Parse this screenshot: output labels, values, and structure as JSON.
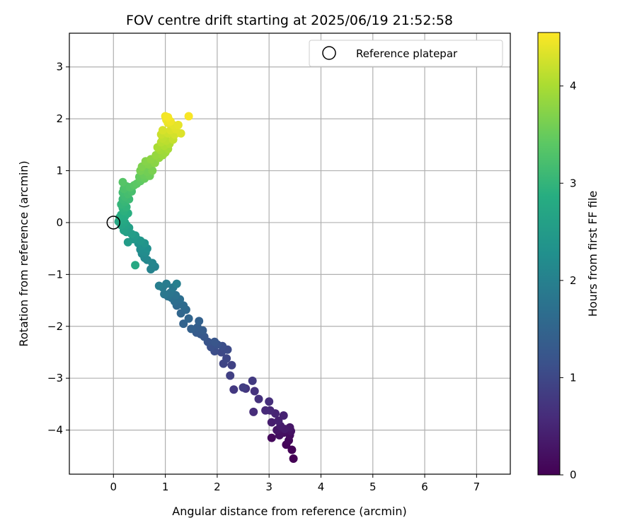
{
  "chart_data": {
    "type": "scatter",
    "title": "FOV centre drift starting at 2025/06/19 21:52:58",
    "xlabel": "Angular distance from reference (arcmin)",
    "ylabel": "Rotation from reference (arcmin)",
    "xlim": [
      -0.85,
      7.65
    ],
    "ylim": [
      -4.85,
      3.65
    ],
    "xticks": [
      0,
      1,
      2,
      3,
      4,
      5,
      6,
      7
    ],
    "yticks": [
      -4,
      -3,
      -2,
      -1,
      0,
      1,
      2,
      3
    ],
    "grid": true,
    "legend": {
      "position": "top-right",
      "entries": [
        "Reference platepar"
      ]
    },
    "reference_point": {
      "x": 0,
      "y": 0,
      "marker": "open-circle"
    },
    "colorbar": {
      "label": "Hours from first FF file",
      "colormap": "viridis",
      "range": [
        0,
        4.55
      ],
      "ticks": [
        0,
        1,
        2,
        3,
        4
      ]
    },
    "points": [
      [
        3.47,
        -4.55,
        0.0
      ],
      [
        3.44,
        -4.38,
        0.03
      ],
      [
        3.33,
        -4.28,
        0.06
      ],
      [
        3.38,
        -4.2,
        0.09
      ],
      [
        3.05,
        -4.15,
        0.12
      ],
      [
        3.4,
        -4.1,
        0.15
      ],
      [
        3.28,
        -4.05,
        0.18
      ],
      [
        3.2,
        -4.1,
        0.21
      ],
      [
        3.42,
        -4.02,
        0.24
      ],
      [
        3.15,
        -4.0,
        0.27
      ],
      [
        3.4,
        -3.95,
        0.3
      ],
      [
        3.3,
        -3.98,
        0.33
      ],
      [
        3.22,
        -3.92,
        0.36
      ],
      [
        3.05,
        -3.85,
        0.4
      ],
      [
        3.18,
        -3.82,
        0.43
      ],
      [
        3.28,
        -3.72,
        0.46
      ],
      [
        3.12,
        -3.68,
        0.5
      ],
      [
        3.02,
        -3.62,
        0.53
      ],
      [
        2.93,
        -3.62,
        0.56
      ],
      [
        2.7,
        -3.65,
        0.6
      ],
      [
        3.0,
        -3.45,
        0.63
      ],
      [
        2.8,
        -3.4,
        0.66
      ],
      [
        2.72,
        -3.25,
        0.7
      ],
      [
        2.55,
        -3.2,
        0.73
      ],
      [
        2.32,
        -3.22,
        0.77
      ],
      [
        2.68,
        -3.05,
        0.8
      ],
      [
        2.5,
        -3.18,
        0.84
      ],
      [
        2.25,
        -2.95,
        0.88
      ],
      [
        2.28,
        -2.75,
        0.92
      ],
      [
        2.12,
        -2.72,
        0.95
      ],
      [
        2.18,
        -2.62,
        0.98
      ],
      [
        2.08,
        -2.5,
        1.02
      ],
      [
        2.2,
        -2.45,
        1.05
      ],
      [
        1.95,
        -2.48,
        1.08
      ],
      [
        2.1,
        -2.38,
        1.11
      ],
      [
        1.88,
        -2.4,
        1.14
      ],
      [
        2.0,
        -2.35,
        1.17
      ],
      [
        1.82,
        -2.3,
        1.2
      ],
      [
        1.95,
        -2.3,
        1.23
      ],
      [
        1.75,
        -2.2,
        1.26
      ],
      [
        1.68,
        -2.15,
        1.29
      ],
      [
        1.6,
        -2.12,
        1.32
      ],
      [
        1.72,
        -2.08,
        1.35
      ],
      [
        1.62,
        -2.02,
        1.38
      ],
      [
        1.5,
        -2.05,
        1.41
      ],
      [
        1.65,
        -1.9,
        1.44
      ],
      [
        1.35,
        -1.95,
        1.47
      ],
      [
        1.45,
        -1.85,
        1.5
      ],
      [
        1.3,
        -1.75,
        1.53
      ],
      [
        1.4,
        -1.68,
        1.56
      ],
      [
        1.22,
        -1.6,
        1.59
      ],
      [
        1.35,
        -1.6,
        1.62
      ],
      [
        1.18,
        -1.52,
        1.65
      ],
      [
        1.28,
        -1.48,
        1.68
      ],
      [
        1.12,
        -1.45,
        1.71
      ],
      [
        1.2,
        -1.4,
        1.74
      ],
      [
        1.05,
        -1.42,
        1.77
      ],
      [
        1.1,
        -1.35,
        1.8
      ],
      [
        0.98,
        -1.38,
        1.83
      ],
      [
        1.15,
        -1.25,
        1.86
      ],
      [
        0.95,
        -1.25,
        1.89
      ],
      [
        1.02,
        -1.18,
        1.92
      ],
      [
        0.88,
        -1.22,
        1.95
      ],
      [
        1.22,
        -1.18,
        1.98
      ],
      [
        0.8,
        -0.85,
        2.02
      ],
      [
        0.72,
        -0.9,
        2.05
      ],
      [
        0.75,
        -0.78,
        2.08
      ],
      [
        0.65,
        -0.72,
        2.11
      ],
      [
        0.6,
        -0.68,
        2.14
      ],
      [
        0.55,
        -0.6,
        2.17
      ],
      [
        0.62,
        -0.58,
        2.2
      ],
      [
        0.52,
        -0.52,
        2.23
      ],
      [
        0.65,
        -0.5,
        2.26
      ],
      [
        0.55,
        -0.45,
        2.29
      ],
      [
        0.48,
        -0.4,
        2.32
      ],
      [
        0.6,
        -0.4,
        2.35
      ],
      [
        0.45,
        -0.32,
        2.38
      ],
      [
        0.52,
        -0.35,
        2.41
      ],
      [
        0.38,
        -0.32,
        2.44
      ],
      [
        0.42,
        -0.25,
        2.47
      ],
      [
        0.28,
        -0.38,
        2.5
      ],
      [
        0.35,
        -0.22,
        2.53
      ],
      [
        0.25,
        -0.18,
        2.56
      ],
      [
        0.3,
        -0.1,
        2.59
      ],
      [
        0.2,
        -0.15,
        2.62
      ],
      [
        0.25,
        -0.05,
        2.65
      ],
      [
        0.15,
        -0.05,
        2.68
      ],
      [
        0.22,
        0.0,
        2.71
      ],
      [
        0.1,
        0.02,
        2.74
      ],
      [
        0.18,
        0.05,
        2.77
      ],
      [
        0.12,
        0.1,
        2.8
      ],
      [
        0.22,
        0.12,
        2.83
      ],
      [
        0.15,
        0.15,
        2.86
      ],
      [
        0.28,
        0.18,
        2.89
      ],
      [
        0.2,
        0.22,
        2.92
      ],
      [
        0.42,
        -0.82,
        2.76
      ],
      [
        0.18,
        0.28,
        2.95
      ],
      [
        0.25,
        0.3,
        2.98
      ],
      [
        0.15,
        0.35,
        3.01
      ],
      [
        0.22,
        0.4,
        3.04
      ],
      [
        0.18,
        0.45,
        3.07
      ],
      [
        0.3,
        0.45,
        3.1
      ],
      [
        0.22,
        0.5,
        3.13
      ],
      [
        0.18,
        0.58,
        3.16
      ],
      [
        0.28,
        0.55,
        3.19
      ],
      [
        0.35,
        0.6,
        3.22
      ],
      [
        0.2,
        0.65,
        3.25
      ],
      [
        0.25,
        0.7,
        3.28
      ],
      [
        0.32,
        0.68,
        3.31
      ],
      [
        0.18,
        0.78,
        3.34
      ],
      [
        0.4,
        0.72,
        3.37
      ],
      [
        0.45,
        0.75,
        3.4
      ],
      [
        0.52,
        0.8,
        3.43
      ],
      [
        0.5,
        0.88,
        3.46
      ],
      [
        0.6,
        0.85,
        3.49
      ],
      [
        0.58,
        0.92,
        3.52
      ],
      [
        0.7,
        0.9,
        3.55
      ],
      [
        0.65,
        0.98,
        3.58
      ],
      [
        0.52,
        1.0,
        3.61
      ],
      [
        0.75,
        1.0,
        3.64
      ],
      [
        0.55,
        1.08,
        3.67
      ],
      [
        0.68,
        1.12,
        3.7
      ],
      [
        0.62,
        1.18,
        3.73
      ],
      [
        0.8,
        1.15,
        3.76
      ],
      [
        0.72,
        1.22,
        3.79
      ],
      [
        0.88,
        1.25,
        3.82
      ],
      [
        0.82,
        1.3,
        3.85
      ],
      [
        0.95,
        1.3,
        3.88
      ],
      [
        1.0,
        1.35,
        3.91
      ],
      [
        0.9,
        1.4,
        3.94
      ],
      [
        1.05,
        1.42,
        3.97
      ],
      [
        0.85,
        1.45,
        4.0
      ],
      [
        0.98,
        1.48,
        4.03
      ],
      [
        1.08,
        1.52,
        4.06
      ],
      [
        0.92,
        1.55,
        4.09
      ],
      [
        1.02,
        1.58,
        4.12
      ],
      [
        0.95,
        1.62,
        4.15
      ],
      [
        1.15,
        1.6,
        4.18
      ],
      [
        0.92,
        1.7,
        4.21
      ],
      [
        1.05,
        1.72,
        4.24
      ],
      [
        1.18,
        1.7,
        4.27
      ],
      [
        0.95,
        1.78,
        4.3
      ],
      [
        1.1,
        1.78,
        4.32
      ],
      [
        1.3,
        1.72,
        4.34
      ],
      [
        1.2,
        1.8,
        4.36
      ],
      [
        1.15,
        1.88,
        4.38
      ],
      [
        1.25,
        1.88,
        4.4
      ],
      [
        1.05,
        1.92,
        4.42
      ],
      [
        1.02,
        1.98,
        4.44
      ],
      [
        1.1,
        1.95,
        4.46
      ],
      [
        1.0,
        2.05,
        4.48
      ],
      [
        1.05,
        2.03,
        4.5
      ],
      [
        1.45,
        2.05,
        4.52
      ]
    ]
  }
}
